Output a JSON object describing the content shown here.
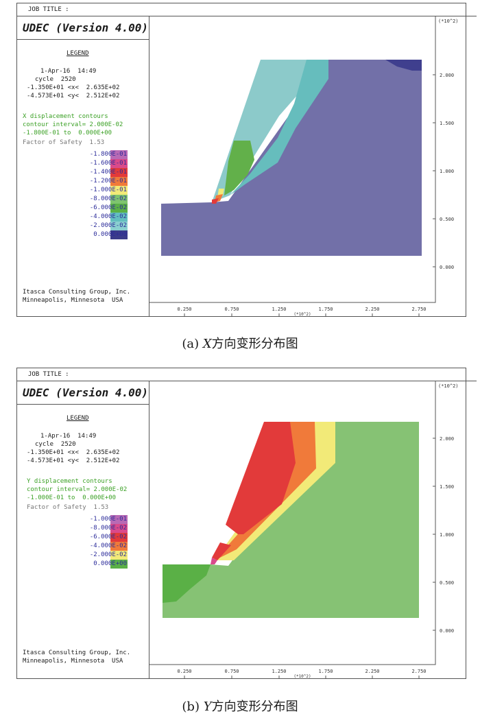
{
  "panel_a": {
    "job_title": "JOB TITLE :",
    "program": "UDEC (Version 4.00)",
    "legend_title": "LEGEND",
    "date_line": "1-Apr-16  14:49",
    "cycle_line": "cycle  2520",
    "x_range": "-1.350E+01 <x<  2.635E+02",
    "y_range": "-4.573E+01 <y<  2.512E+02",
    "contour_type": "X displacement contours",
    "contour_interval": "contour interval= 2.000E-02",
    "contour_range": "-1.800E-01 to  0.000E+00",
    "fos": "Factor of Safety  1.53",
    "legend_items": [
      {
        "label": "-1.800E-01",
        "color": "#b86ab5"
      },
      {
        "label": "-1.600E-01",
        "color": "#d94a8b"
      },
      {
        "label": "-1.400E-01",
        "color": "#e23a3a"
      },
      {
        "label": "-1.200E-01",
        "color": "#f07a3a"
      },
      {
        "label": "-1.000E-01",
        "color": "#f2ea78"
      },
      {
        "label": "-8.000E-02",
        "color": "#7ec46e"
      },
      {
        "label": "-6.000E-02",
        "color": "#5ab046"
      },
      {
        "label": "-4.000E-02",
        "color": "#63bfbf"
      },
      {
        "label": "-2.000E-02",
        "color": "#8ad0d0"
      },
      {
        "label": "0.000E+00",
        "color": "#3b3b8a"
      }
    ],
    "company": "Itasca Consulting Group, Inc.",
    "location": "Minneapolis, Minnesota  USA",
    "x_ticks": [
      "0.250",
      "0.750",
      "1.250",
      "1.750",
      "2.250",
      "2.750"
    ],
    "x_scale": "(*10^2)",
    "y_ticks": [
      "2.000",
      "1.500",
      "1.000",
      "0.500",
      "0.000"
    ],
    "y_scale": "(*10^2)",
    "caption_prefix": "(a) ",
    "caption_var": "X",
    "caption_text": "方向变形分布图"
  },
  "panel_b": {
    "job_title": "JOB TITLE :",
    "program": "UDEC (Version 4.00)",
    "legend_title": "LEGEND",
    "date_line": "1-Apr-16  14:49",
    "cycle_line": "cycle  2520",
    "x_range": "-1.350E+01 <x<  2.635E+02",
    "y_range": "-4.573E+01 <y<  2.512E+02",
    "contour_type": "Y displacement contours",
    "contour_interval": "contour interval= 2.000E-02",
    "contour_range": "-1.000E-01 to  0.000E+00",
    "fos": "Factor of Safety  1.53",
    "legend_items": [
      {
        "label": "-1.000E-01",
        "color": "#b86ab5"
      },
      {
        "label": "-8.000E-02",
        "color": "#d94a8b"
      },
      {
        "label": "-6.000E-02",
        "color": "#e23a3a"
      },
      {
        "label": "-4.000E-02",
        "color": "#f07a3a"
      },
      {
        "label": "-2.000E-02",
        "color": "#f2ea78"
      },
      {
        "label": "0.000E+00",
        "color": "#5ab046"
      }
    ],
    "company": "Itasca Consulting Group, Inc.",
    "location": "Minneapolis, Minnesota  USA",
    "x_ticks": [
      "0.250",
      "0.750",
      "1.250",
      "1.750",
      "2.250",
      "2.750"
    ],
    "x_scale": "(*10^2)",
    "y_ticks": [
      "2.000",
      "1.500",
      "1.000",
      "0.500",
      "0.000"
    ],
    "y_scale": "(*10^2)",
    "caption_prefix": "(b) ",
    "caption_var": "Y",
    "caption_text": "方向变形分布图"
  }
}
